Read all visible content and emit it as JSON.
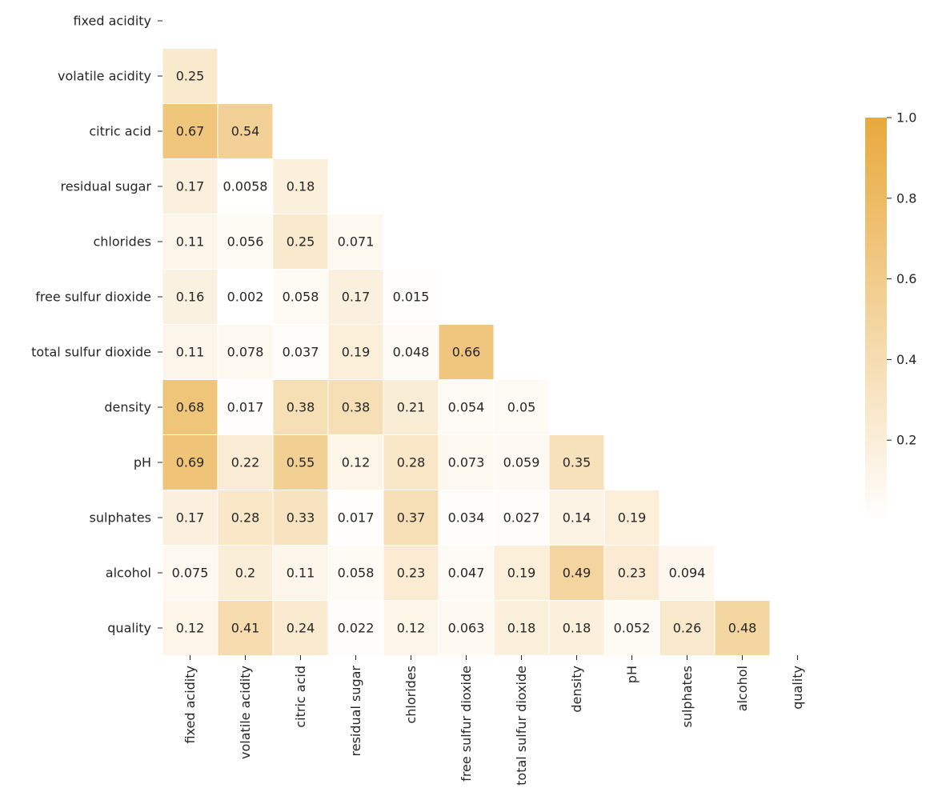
{
  "chart_data": {
    "type": "heatmap",
    "mask": "upper-triangle-including-diagonal",
    "labels": [
      "fixed acidity",
      "volatile acidity",
      "citric acid",
      "residual sugar",
      "chlorides",
      "free sulfur dioxide",
      "total sulfur dioxide",
      "density",
      "pH",
      "sulphates",
      "alcohol",
      "quality"
    ],
    "values": [
      [],
      [
        "0.25"
      ],
      [
        "0.67",
        "0.54"
      ],
      [
        "0.17",
        "0.0058",
        "0.18"
      ],
      [
        "0.11",
        "0.056",
        "0.25",
        "0.071"
      ],
      [
        "0.16",
        "0.002",
        "0.058",
        "0.17",
        "0.015"
      ],
      [
        "0.11",
        "0.078",
        "0.037",
        "0.19",
        "0.048",
        "0.66"
      ],
      [
        "0.68",
        "0.017",
        "0.38",
        "0.38",
        "0.21",
        "0.054",
        "0.05"
      ],
      [
        "0.69",
        "0.22",
        "0.55",
        "0.12",
        "0.28",
        "0.073",
        "0.059",
        "0.35"
      ],
      [
        "0.17",
        "0.28",
        "0.33",
        "0.017",
        "0.37",
        "0.034",
        "0.027",
        "0.14",
        "0.19"
      ],
      [
        "0.075",
        "0.2",
        "0.11",
        "0.058",
        "0.23",
        "0.047",
        "0.19",
        "0.49",
        "0.23",
        "0.094"
      ],
      [
        "0.12",
        "0.41",
        "0.24",
        "0.022",
        "0.12",
        "0.063",
        "0.18",
        "0.18",
        "0.052",
        "0.26",
        "0.48"
      ]
    ],
    "colorbar": {
      "range": [
        0,
        1
      ],
      "ticks": [
        "0.2",
        "0.4",
        "0.6",
        "0.8",
        "1.0"
      ],
      "low_color": "#ffffff",
      "high_color": "#e8a93c"
    },
    "grid": false,
    "cell_border_color": "#ffffff"
  }
}
